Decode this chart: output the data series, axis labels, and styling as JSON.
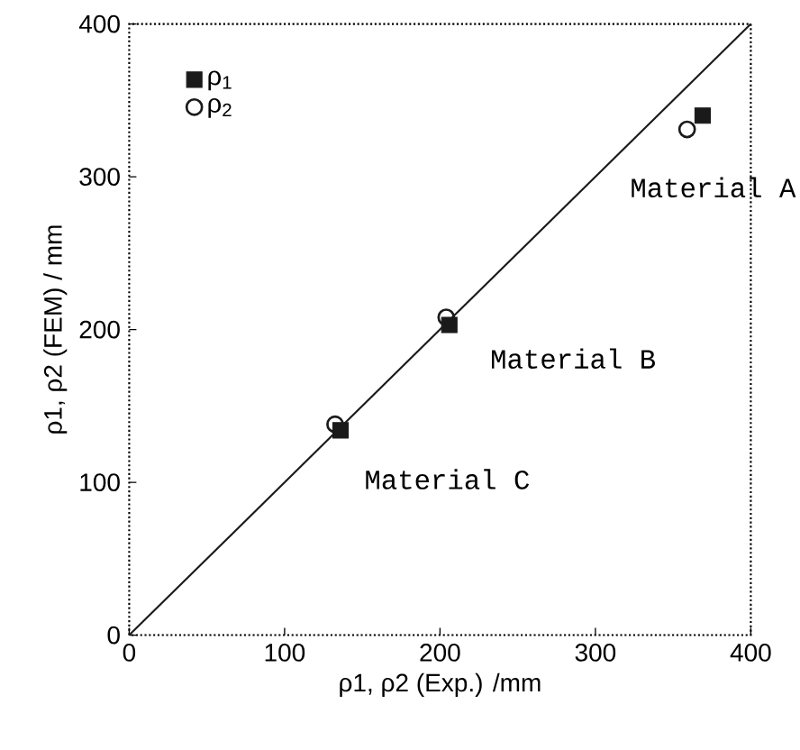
{
  "chart_data": {
    "type": "scatter",
    "xlabel": "ρ1, ρ2 (Exp.) /mm",
    "ylabel": "ρ1, ρ2 (FEM) / mm",
    "xlim": [
      0,
      400
    ],
    "ylim": [
      0,
      400
    ],
    "xticks": [
      0,
      100,
      200,
      300,
      400
    ],
    "yticks": [
      0,
      100,
      200,
      300,
      400
    ],
    "grid": false,
    "legend": "top left",
    "series": [
      {
        "name": "ρ$_{1}$",
        "color": "#1a1a1a",
        "marker": "square",
        "x": [
          369,
          206,
          136
        ],
        "values": [
          340,
          203,
          134
        ]
      },
      {
        "name": "ρ$_{2}$",
        "color": "#1a1a1a",
        "marker": "circle",
        "x": [
          359,
          204,
          132.5
        ],
        "values": [
          331,
          208,
          138
        ]
      },
      {
        "type": "line",
        "color": "#1a1a1a",
        "marker": "none",
        "line_style": "solid",
        "x": [
          0,
          400
        ],
        "values": [
          0,
          400
        ]
      }
    ],
    "annotations": [
      {
        "text": "Material A",
        "x": 369,
        "y": 340
      },
      {
        "text": "Material B",
        "x": 206,
        "y": 203
      },
      {
        "text": "Material C",
        "x": 136,
        "y": 134
      }
    ]
  }
}
